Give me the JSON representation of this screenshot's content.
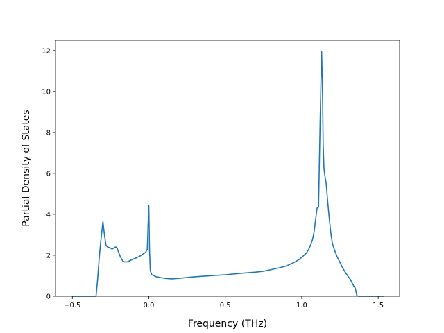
{
  "chart_data": {
    "type": "line",
    "title": "",
    "xlabel": "Frequency (THz)",
    "ylabel": "Partial Density of States",
    "xlim": [
      -0.61,
      1.64
    ],
    "ylim": [
      0,
      12.5
    ],
    "xticks": [
      -0.5,
      0.0,
      0.5,
      1.0,
      1.5
    ],
    "xtick_labels": [
      "−0.5",
      "0.0",
      "0.5",
      "1.0",
      "1.5"
    ],
    "yticks": [
      0,
      2,
      4,
      6,
      8,
      10,
      12
    ],
    "ytick_labels": [
      "0",
      "2",
      "4",
      "6",
      "8",
      "10",
      "12"
    ],
    "grid": false,
    "legend": "none",
    "series": [
      {
        "color": "#1f77b4",
        "x": [
          -0.5,
          -0.345,
          -0.335,
          -0.325,
          -0.315,
          -0.3,
          -0.29,
          -0.28,
          -0.27,
          -0.26,
          -0.25,
          -0.24,
          -0.23,
          -0.22,
          -0.21,
          -0.2,
          -0.19,
          -0.18,
          -0.17,
          -0.16,
          -0.14,
          -0.12,
          -0.1,
          -0.08,
          -0.06,
          -0.04,
          -0.02,
          -0.01,
          -0.005,
          0.0,
          0.005,
          0.01,
          0.02,
          0.05,
          0.1,
          0.15,
          0.2,
          0.3,
          0.4,
          0.5,
          0.6,
          0.7,
          0.75,
          0.8,
          0.85,
          0.9,
          0.95,
          0.98,
          1.0,
          1.03,
          1.05,
          1.07,
          1.08,
          1.09,
          1.1,
          1.11,
          1.12,
          1.13,
          1.135,
          1.14,
          1.145,
          1.15,
          1.16,
          1.17,
          1.18,
          1.19,
          1.2,
          1.21,
          1.22,
          1.23,
          1.25,
          1.27,
          1.3,
          1.32,
          1.34,
          1.35,
          1.36,
          1.37,
          1.4,
          1.45,
          1.5,
          1.54
        ],
        "y": [
          0,
          0,
          0.8,
          1.8,
          2.6,
          3.65,
          3.0,
          2.5,
          2.4,
          2.38,
          2.35,
          2.3,
          2.35,
          2.4,
          2.4,
          2.2,
          2.0,
          1.85,
          1.72,
          1.68,
          1.68,
          1.75,
          1.82,
          1.88,
          1.95,
          2.05,
          2.15,
          2.3,
          3.4,
          4.45,
          2.2,
          1.25,
          1.05,
          0.95,
          0.88,
          0.85,
          0.88,
          0.95,
          1.0,
          1.05,
          1.12,
          1.18,
          1.22,
          1.3,
          1.38,
          1.48,
          1.65,
          1.78,
          1.9,
          2.1,
          2.35,
          2.75,
          3.1,
          3.7,
          4.3,
          4.35,
          8.4,
          11.95,
          10.5,
          7.5,
          6.3,
          5.95,
          5.5,
          4.6,
          3.8,
          3.1,
          2.6,
          2.35,
          2.15,
          1.95,
          1.65,
          1.35,
          1.0,
          0.8,
          0.5,
          0.4,
          0.05,
          0,
          0,
          0,
          0,
          0
        ]
      }
    ]
  }
}
